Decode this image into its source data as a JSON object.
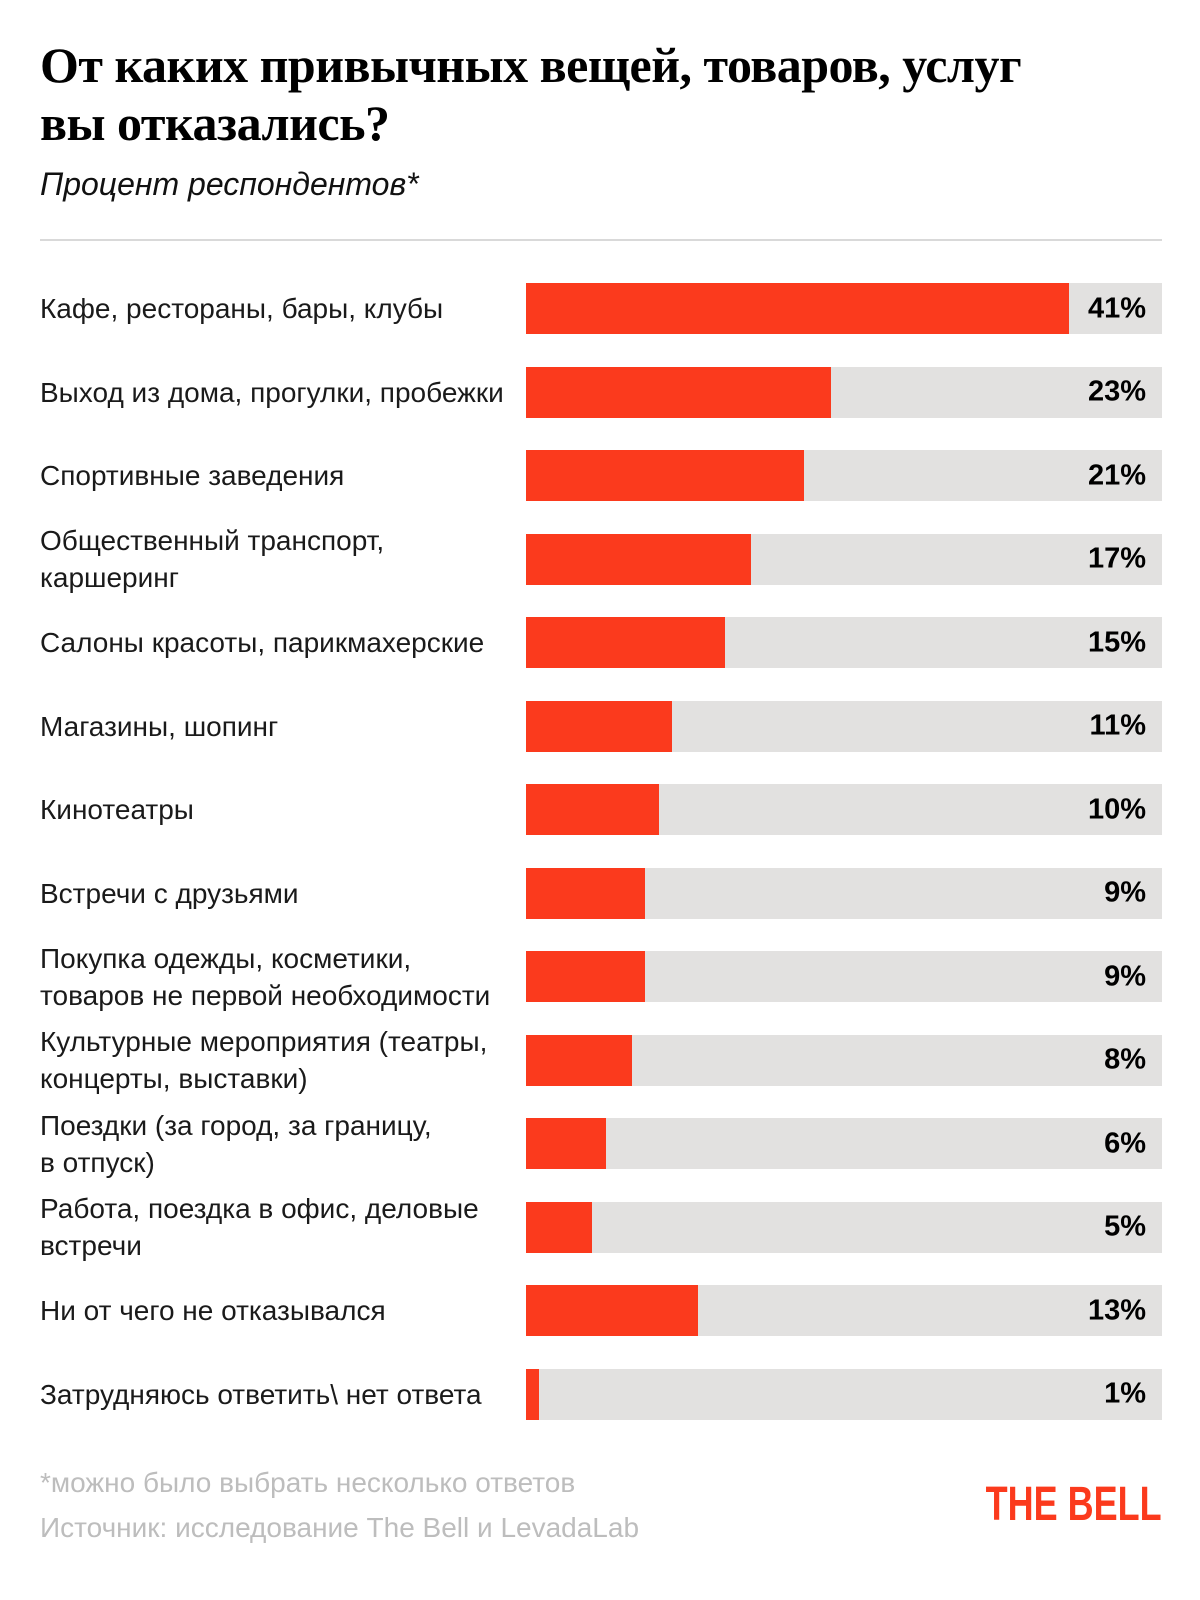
{
  "colors": {
    "bar": "#fb3a1d",
    "track": "#e2e1e0",
    "divider": "#d9d9d9",
    "footer_text": "#bdbdbd",
    "logo": "#fb3a1d"
  },
  "chart_data": {
    "type": "bar",
    "orientation": "horizontal",
    "title": "От каких привычных вещей, товаров, услуг\nвы отказались?",
    "subtitle": "Процент респондентов*",
    "categories": [
      "Кафе, рестораны, бары, клубы",
      "Выход из дома, прогулки, пробежки",
      "Спортивные заведения",
      "Общественный транспорт,\nкаршеринг",
      "Салоны красоты, парикмахерские",
      "Магазины, шопинг",
      "Кинотеатры",
      "Встречи с друзьями",
      "Покупка одежды, косметики,\nтоваров не первой необходимости",
      "Культурные мероприятия (театры,\nконцерты, выставки)",
      "Поездки (за город, за границу,\nв отпуск)",
      "Работа, поездка в офис, деловые\nвстречи",
      "Ни от чего не отказывался",
      "Затрудняюсь ответить\\ нет ответа"
    ],
    "values": [
      41,
      23,
      21,
      17,
      15,
      11,
      10,
      9,
      9,
      8,
      6,
      5,
      13,
      1
    ],
    "value_suffix": "%",
    "axis_max": 48,
    "grid": false,
    "legend": "none"
  },
  "footer": {
    "footnote": "*можно было выбрать несколько ответов",
    "source": "Источник: исследование The Bell и LevadaLab",
    "logo_text": "THE BELL"
  }
}
